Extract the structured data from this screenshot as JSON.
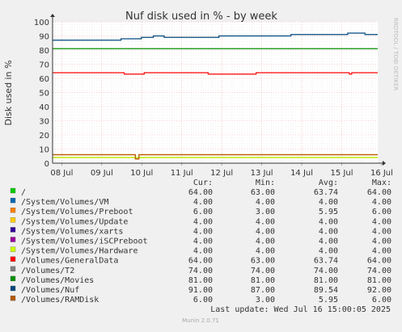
{
  "chart_data": {
    "type": "line",
    "title": "Nuf disk used in % - by week",
    "ylabel": "Disk used in %",
    "ylim": [
      0,
      100
    ],
    "yticks": [
      0,
      10,
      20,
      30,
      40,
      50,
      60,
      70,
      80,
      90,
      100
    ],
    "x_tick_labels": [
      "08 Jul",
      "09 Jul",
      "10 Jul",
      "11 Jul",
      "12 Jul",
      "13 Jul",
      "14 Jul",
      "15 Jul",
      "16 Jul"
    ],
    "x_range_days": [
      7.77,
      15.9
    ],
    "grid": true,
    "side_label": "RRDTOOL / TOBI OETIKER",
    "footer": "Munin 2.0.71",
    "last_update": "Last update: Wed Jul 16 15:00:05 2025",
    "legend_headers": [
      "Cur:",
      "Min:",
      "Avg:",
      "Max:"
    ],
    "series": [
      {
        "name": "/",
        "color": "#00cc00",
        "cur": "64.00",
        "min": "63.00",
        "avg": "63.74",
        "max": "64.00",
        "drawn": false,
        "points": [
          [
            7.77,
            64
          ],
          [
            15.9,
            64
          ]
        ]
      },
      {
        "name": "/System/Volumes/VM",
        "color": "#0066b3",
        "cur": "4.00",
        "min": "4.00",
        "avg": "4.00",
        "max": "4.00",
        "drawn": true,
        "points": [
          [
            7.77,
            4
          ],
          [
            15.9,
            4
          ]
        ]
      },
      {
        "name": "/System/Volumes/Preboot",
        "color": "#ff8000",
        "cur": "6.00",
        "min": "3.00",
        "avg": "5.95",
        "max": "6.00",
        "drawn": true,
        "points": [
          [
            7.77,
            6
          ],
          [
            9.83,
            6
          ],
          [
            9.84,
            3
          ],
          [
            9.92,
            3
          ],
          [
            9.93,
            6
          ],
          [
            15.9,
            6
          ]
        ]
      },
      {
        "name": "/System/Volumes/Update",
        "color": "#ffcc00",
        "cur": "4.00",
        "min": "4.00",
        "avg": "4.00",
        "max": "4.00",
        "drawn": true,
        "points": [
          [
            7.77,
            4
          ],
          [
            15.9,
            4
          ]
        ]
      },
      {
        "name": "/System/Volumes/xarts",
        "color": "#330099",
        "cur": "4.00",
        "min": "4.00",
        "avg": "4.00",
        "max": "4.00",
        "drawn": false,
        "points": [
          [
            7.77,
            4
          ],
          [
            15.9,
            4
          ]
        ]
      },
      {
        "name": "/System/Volumes/iSCPreboot",
        "color": "#990099",
        "cur": "4.00",
        "min": "4.00",
        "avg": "4.00",
        "max": "4.00",
        "drawn": false,
        "points": [
          [
            7.77,
            4
          ],
          [
            15.9,
            4
          ]
        ]
      },
      {
        "name": "/System/Volumes/Hardware",
        "color": "#ccff00",
        "cur": "4.00",
        "min": "4.00",
        "avg": "4.00",
        "max": "4.00",
        "drawn": true,
        "points": [
          [
            7.77,
            4
          ],
          [
            15.9,
            4
          ]
        ]
      },
      {
        "name": "/Volumes/GeneralData",
        "color": "#ff0000",
        "cur": "64.00",
        "min": "63.00",
        "avg": "63.74",
        "max": "64.00",
        "drawn": true,
        "points": [
          [
            7.77,
            64
          ],
          [
            9.5,
            64
          ],
          [
            9.56,
            63
          ],
          [
            10.0,
            63
          ],
          [
            10.06,
            64
          ],
          [
            11.6,
            64
          ],
          [
            11.66,
            63
          ],
          [
            12.8,
            63
          ],
          [
            12.86,
            64
          ],
          [
            15.15,
            64
          ],
          [
            15.19,
            63
          ],
          [
            15.25,
            64
          ],
          [
            15.9,
            64
          ]
        ]
      },
      {
        "name": "/Volumes/T2",
        "color": "#808080",
        "cur": "74.00",
        "min": "74.00",
        "avg": "74.00",
        "max": "74.00",
        "drawn": false,
        "points": [
          [
            7.77,
            74
          ],
          [
            15.9,
            74
          ]
        ]
      },
      {
        "name": "/Volumes/Movies",
        "color": "#008f00",
        "cur": "81.00",
        "min": "81.00",
        "avg": "81.00",
        "max": "81.00",
        "drawn": true,
        "points": [
          [
            7.77,
            81
          ],
          [
            15.9,
            81
          ]
        ]
      },
      {
        "name": "/Volumes/Nuf",
        "color": "#00487d",
        "cur": "91.00",
        "min": "87.00",
        "avg": "89.54",
        "max": "92.00",
        "drawn": true,
        "points": [
          [
            7.77,
            87
          ],
          [
            9.45,
            87
          ],
          [
            9.48,
            88
          ],
          [
            9.96,
            88
          ],
          [
            9.99,
            89
          ],
          [
            10.26,
            89
          ],
          [
            10.29,
            90
          ],
          [
            10.53,
            90
          ],
          [
            10.56,
            89
          ],
          [
            11.9,
            89
          ],
          [
            11.93,
            90
          ],
          [
            13.7,
            90
          ],
          [
            13.73,
            91
          ],
          [
            15.12,
            91
          ],
          [
            15.15,
            92
          ],
          [
            15.55,
            92
          ],
          [
            15.58,
            91
          ],
          [
            15.9,
            91
          ]
        ]
      },
      {
        "name": "/Volumes/RAMDisk",
        "color": "#b35a00",
        "cur": "6.00",
        "min": "3.00",
        "avg": "5.95",
        "max": "6.00",
        "drawn": true,
        "points": [
          [
            7.77,
            6
          ],
          [
            9.83,
            6
          ],
          [
            9.84,
            3
          ],
          [
            9.92,
            3
          ],
          [
            9.93,
            6
          ],
          [
            15.9,
            6
          ]
        ]
      }
    ]
  }
}
